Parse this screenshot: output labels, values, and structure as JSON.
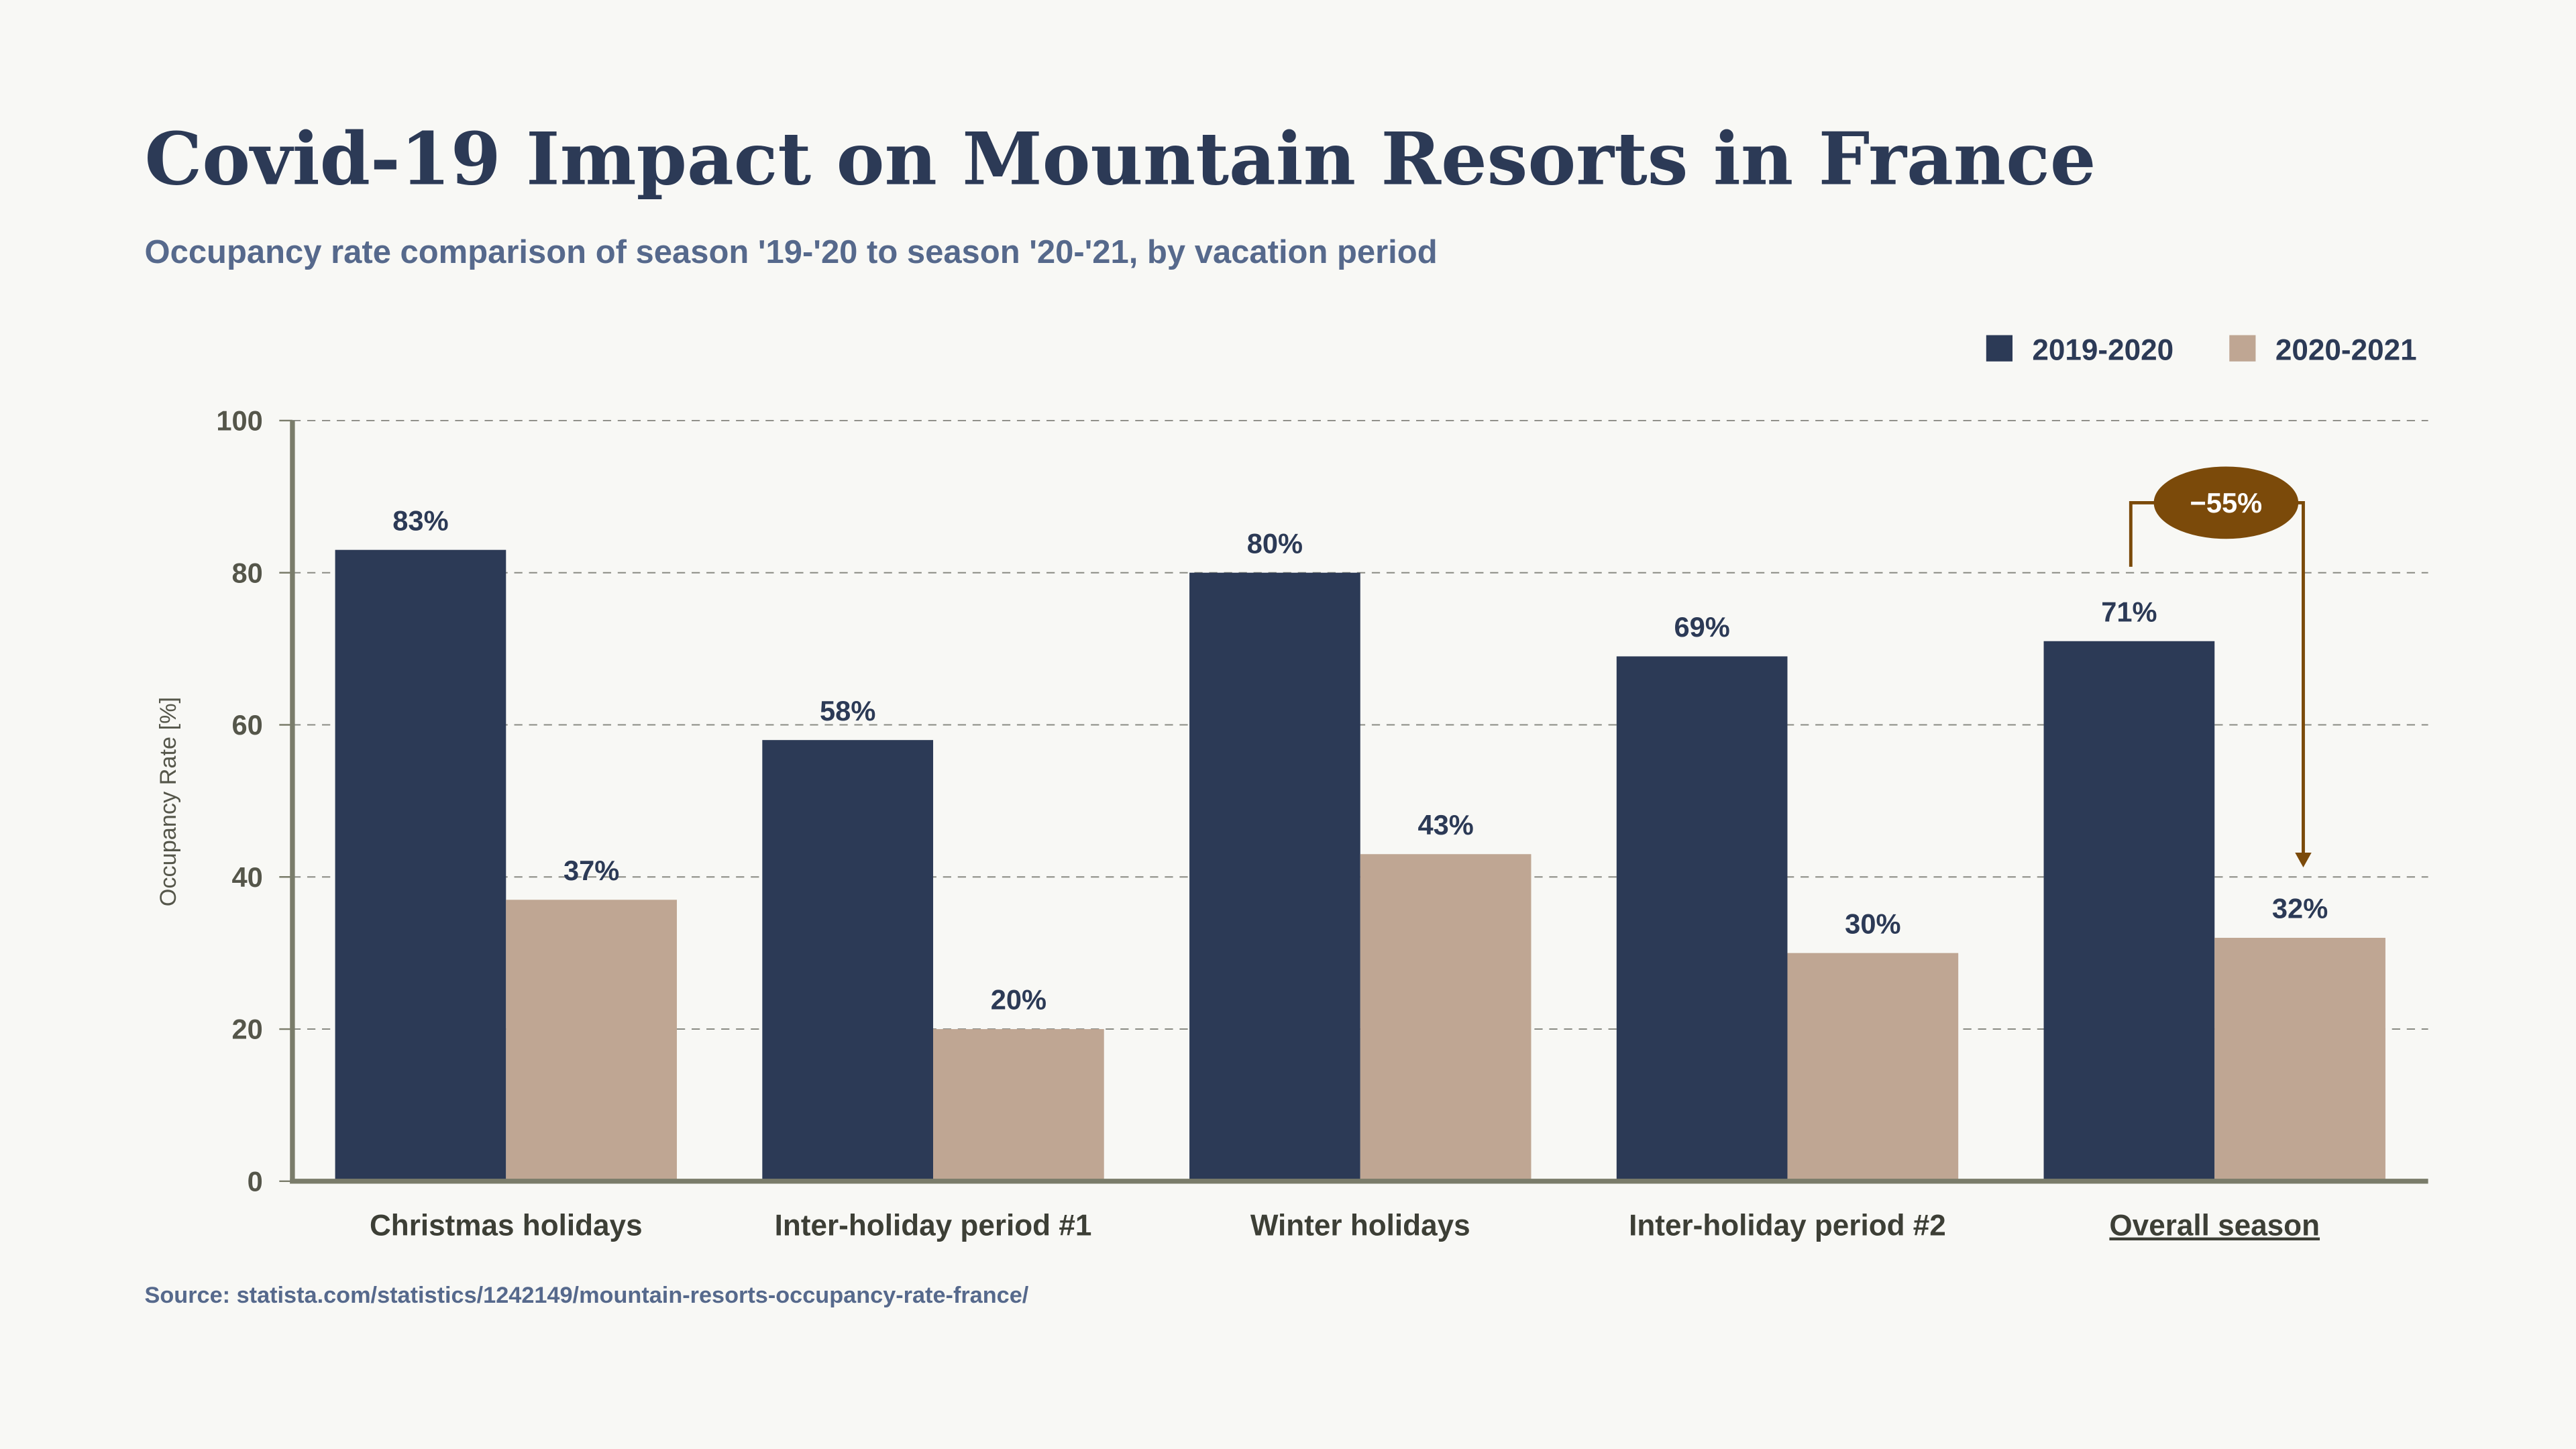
{
  "chart_data": {
    "type": "bar",
    "title": "Covid-19 Impact on Mountain Resorts in France",
    "subtitle": "Occupancy rate comparison of season '19-'20 to season '20-'21, by vacation period",
    "xlabel": "",
    "ylabel": "Occupancy Rate [%]",
    "ylim": [
      0,
      100
    ],
    "yticks": [
      "0",
      "20",
      "40",
      "60",
      "80",
      "100"
    ],
    "grid": true,
    "legend_position": "top-right",
    "categories": [
      "Christmas holidays",
      "Inter-holiday period #1",
      "Winter holidays",
      "Inter-holiday period #2",
      "Overall season"
    ],
    "series": [
      {
        "name": "2019-2020",
        "color": "#2c3a56",
        "values": [
          83,
          58,
          80,
          69,
          71
        ],
        "labels": [
          "83%",
          "58%",
          "80%",
          "69%",
          "71%"
        ]
      },
      {
        "name": "2020-2021",
        "color": "#bfa693",
        "values": [
          37,
          20,
          43,
          30,
          32
        ],
        "labels": [
          "37%",
          "20%",
          "43%",
          "30%",
          "32%"
        ]
      }
    ],
    "annotation": {
      "text": "−55%",
      "category": "Overall season",
      "color": "#7b4a0a"
    },
    "source": "Source: statista.com/statistics/1242149/mountain-resorts-occupancy-rate-france/"
  }
}
